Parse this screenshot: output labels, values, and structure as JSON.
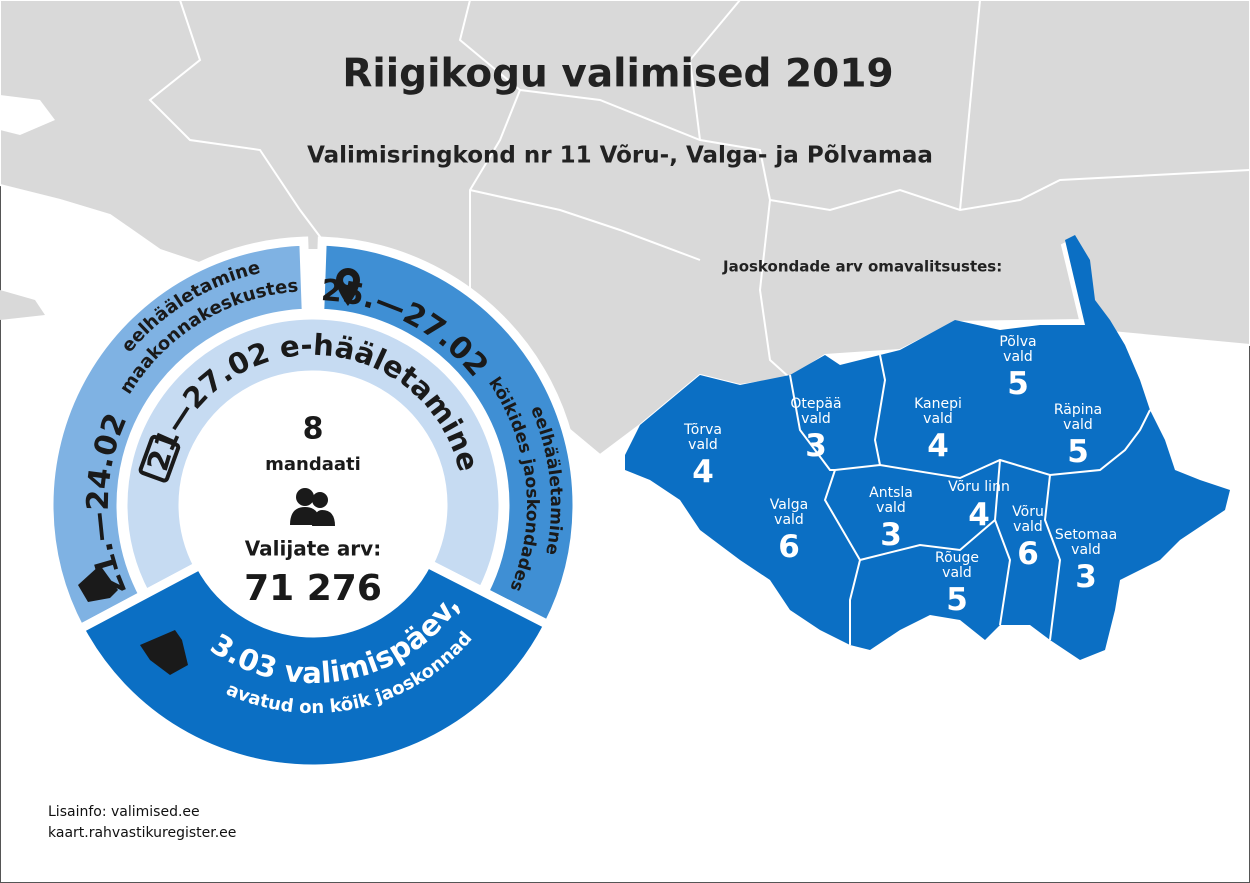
{
  "title": "Riigikogu valimised 2019",
  "subtitle": "Valimisringkond nr 11 Võru-, Valga- ja Põlvamaa",
  "map_heading": "Jaoskondade arv omavalitsustes:",
  "municipalities": [
    {
      "name": "Tõrva vald",
      "count": 4
    },
    {
      "name": "Otepää vald",
      "count": 3
    },
    {
      "name": "Valga vald",
      "count": 6
    },
    {
      "name": "Kanepi vald",
      "count": 4
    },
    {
      "name": "Põlva vald",
      "count": 5
    },
    {
      "name": "Räpina vald",
      "count": 5
    },
    {
      "name": "Antsla vald",
      "count": 3
    },
    {
      "name": "Võru linn",
      "count": 4
    },
    {
      "name": "Võru vald",
      "count": 6
    },
    {
      "name": "Setomaa vald",
      "count": 3
    },
    {
      "name": "Rõuge vald",
      "count": 5
    }
  ],
  "voting": {
    "advance_county": {
      "dates": "21.—24.02",
      "line1": "eelhääletamine",
      "line2": "maakonnakeskustes"
    },
    "advance_all": {
      "dates": "25.—27.02",
      "line1": "eelhääletamine",
      "line2": "kõikides jaoskondades"
    },
    "e_voting": "21—27.02 e-hääletamine",
    "election_day": {
      "line1": "3.03 valimispäev,",
      "line2": "avatud on kõik jaoskonnad"
    }
  },
  "center": {
    "seats": 8,
    "seats_label": "mandaati",
    "voters_label": "Valijate arv:",
    "voters": "71 276"
  },
  "footer": [
    "Lisainfo: valimised.ee",
    "kaart.rahvastikuregister.ee"
  ]
}
